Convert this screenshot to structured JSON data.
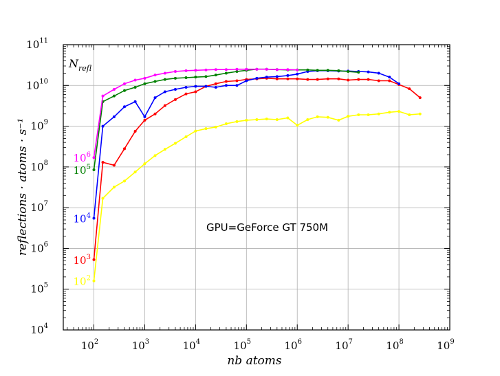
{
  "chart_data": {
    "type": "line",
    "title": "",
    "xlabel": "nb atoms",
    "ylabel": "reflections · atoms · s⁻¹",
    "x_scale": "log",
    "y_scale": "log",
    "xlim": [
      25,
      1000000000
    ],
    "ylim": [
      10000,
      100000000000
    ],
    "x_ticks": [
      {
        "base": "10",
        "exp": "2"
      },
      {
        "base": "10",
        "exp": "3"
      },
      {
        "base": "10",
        "exp": "4"
      },
      {
        "base": "10",
        "exp": "5"
      },
      {
        "base": "10",
        "exp": "6"
      },
      {
        "base": "10",
        "exp": "7"
      },
      {
        "base": "10",
        "exp": "8"
      },
      {
        "base": "10",
        "exp": "9"
      }
    ],
    "y_ticks": [
      {
        "base": "10",
        "exp": "4"
      },
      {
        "base": "10",
        "exp": "5"
      },
      {
        "base": "10",
        "exp": "6"
      },
      {
        "base": "10",
        "exp": "7"
      },
      {
        "base": "10",
        "exp": "8"
      },
      {
        "base": "10",
        "exp": "9"
      },
      {
        "base": "10",
        "exp": "10"
      },
      {
        "base": "10",
        "exp": "11"
      }
    ],
    "grid": true,
    "annotation": "GPU=GeForce GT 750M",
    "legend_title": "N_refl",
    "series": [
      {
        "name_base": "10",
        "name_exp": "2",
        "color": "#ffff00",
        "x": [
          100,
          150,
          250,
          400,
          650,
          1000,
          1600,
          2500,
          4000,
          6500,
          10000,
          16000,
          25000,
          40000,
          65000,
          100000,
          160000,
          250000,
          400000,
          650000,
          1000000,
          1600000,
          2500000,
          4000000,
          6500000,
          10000000,
          16000000,
          25000000,
          40000000,
          65000000,
          100000000,
          160000000,
          260000000
        ],
        "y": [
          160000,
          17000000,
          32000000,
          45000000,
          75000000,
          120000000,
          190000000,
          270000000,
          380000000,
          550000000,
          760000000,
          870000000,
          950000000,
          1150000000,
          1300000000,
          1400000000,
          1450000000,
          1500000000,
          1450000000,
          1600000000,
          1050000000,
          1450000000,
          1700000000,
          1650000000,
          1400000000,
          1750000000,
          1900000000,
          1900000000,
          2000000000,
          2200000000,
          2300000000,
          1900000000,
          2000000000
        ]
      },
      {
        "name_base": "10",
        "name_exp": "3",
        "color": "#ff0000",
        "x": [
          100,
          150,
          250,
          400,
          650,
          1000,
          1600,
          2500,
          4000,
          6500,
          10000,
          16000,
          25000,
          40000,
          65000,
          100000,
          160000,
          250000,
          400000,
          650000,
          1000000,
          1600000,
          2500000,
          4000000,
          6500000,
          10000000,
          16000000,
          25000000,
          40000000,
          65000000,
          100000000,
          160000000,
          260000000
        ],
        "y": [
          530000,
          130000000,
          110000000,
          280000000,
          750000000,
          1400000000,
          2000000000,
          3200000000,
          4500000000,
          6200000000,
          7000000000,
          9500000000,
          11000000000,
          12500000000,
          13000000000,
          14000000000,
          14500000000,
          15000000000,
          14500000000,
          14500000000,
          14500000000,
          14000000000,
          14000000000,
          14500000000,
          14500000000,
          13500000000,
          14000000000,
          14000000000,
          13000000000,
          13000000000,
          10500000000,
          8300000000,
          5000000000
        ]
      },
      {
        "name_base": "10",
        "name_exp": "4",
        "color": "#0000ff",
        "x": [
          100,
          150,
          250,
          400,
          650,
          1000,
          1600,
          2500,
          4000,
          6500,
          10000,
          16000,
          25000,
          40000,
          65000,
          100000,
          160000,
          250000,
          400000,
          650000,
          1000000,
          1600000,
          2500000,
          4000000,
          6500000,
          10000000,
          16000000,
          25000000,
          40000000,
          65000000,
          100000000
        ],
        "y": [
          5500000,
          1000000000,
          1700000000,
          3000000000,
          4000000000,
          1700000000,
          5000000000,
          7000000000,
          8000000000,
          9000000000,
          9500000000,
          9500000000,
          9000000000,
          10000000000,
          10000000000,
          13000000000,
          15000000000,
          16000000000,
          16500000000,
          17500000000,
          19000000000,
          22000000000,
          23000000000,
          23000000000,
          22500000000,
          22500000000,
          22000000000,
          21500000000,
          20000000000,
          16000000000,
          11000000000
        ]
      },
      {
        "name_base": "10",
        "name_exp": "5",
        "color": "#008000",
        "x": [
          100,
          150,
          250,
          400,
          650,
          1000,
          1600,
          2500,
          4000,
          6500,
          10000,
          16000,
          25000,
          40000,
          65000,
          100000,
          160000,
          250000,
          400000,
          650000,
          1000000,
          1600000,
          2500000,
          4000000,
          6500000,
          10000000,
          16000000
        ],
        "y": [
          85000000,
          4000000000,
          5500000000,
          7500000000,
          9000000000,
          11000000000,
          12500000000,
          14000000000,
          15000000000,
          15500000000,
          16000000000,
          16500000000,
          18000000000,
          20000000000,
          22000000000,
          23500000000,
          25000000000,
          25000000000,
          24500000000,
          24000000000,
          24000000000,
          24000000000,
          23500000000,
          23500000000,
          23000000000,
          22000000000,
          21000000000
        ]
      },
      {
        "name_base": "10",
        "name_exp": "6",
        "color": "#ff00ff",
        "x": [
          100,
          150,
          250,
          400,
          650,
          1000,
          1600,
          2500,
          4000,
          6500,
          10000,
          16000,
          25000,
          40000,
          65000,
          100000,
          160000,
          250000,
          400000,
          650000,
          1000000
        ],
        "y": [
          170000000,
          5500000000,
          8000000000,
          11000000000,
          13500000000,
          15000000000,
          18000000000,
          20000000000,
          22000000000,
          23000000000,
          23500000000,
          24000000000,
          24500000000,
          24500000000,
          25000000000,
          25000000000,
          25000000000,
          25000000000,
          24500000000,
          24500000000,
          24000000000
        ]
      }
    ]
  }
}
